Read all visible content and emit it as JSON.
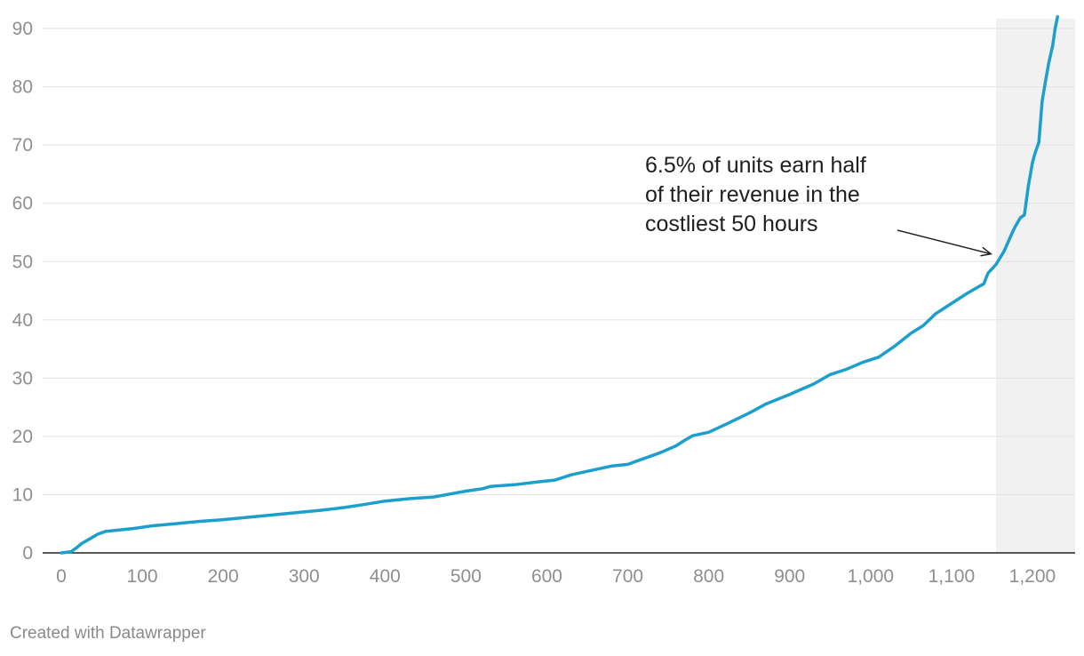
{
  "chart_data": {
    "type": "line",
    "title": "",
    "xlabel": "",
    "ylabel": "",
    "xlim": [
      0,
      1235
    ],
    "ylim": [
      0,
      92
    ],
    "x_ticks": [
      0,
      100,
      200,
      300,
      400,
      500,
      600,
      700,
      800,
      900,
      1000,
      1100,
      1200
    ],
    "x_tick_labels": [
      "0",
      "100",
      "200",
      "300",
      "400",
      "500",
      "600",
      "700",
      "800",
      "900",
      "1,000",
      "1,100",
      "1,200"
    ],
    "y_ticks": [
      0,
      10,
      20,
      30,
      40,
      50,
      60,
      70,
      80,
      90
    ],
    "y_tick_labels": [
      "0",
      "10",
      "20",
      "30",
      "40",
      "50",
      "60",
      "70",
      "80",
      "90"
    ],
    "grid": true,
    "highlight_range": [
      1155,
      1235
    ],
    "series": [
      {
        "color": "#1d9fcd",
        "points": [
          [
            0,
            0
          ],
          [
            12,
            0.2
          ],
          [
            20,
            1.0
          ],
          [
            25,
            1.6
          ],
          [
            35,
            2.4
          ],
          [
            45,
            3.2
          ],
          [
            55,
            3.7
          ],
          [
            70,
            3.9
          ],
          [
            90,
            4.2
          ],
          [
            110,
            4.6
          ],
          [
            140,
            5.0
          ],
          [
            170,
            5.4
          ],
          [
            200,
            5.7
          ],
          [
            230,
            6.1
          ],
          [
            260,
            6.5
          ],
          [
            290,
            6.9
          ],
          [
            320,
            7.3
          ],
          [
            350,
            7.8
          ],
          [
            370,
            8.2
          ],
          [
            400,
            8.9
          ],
          [
            430,
            9.3
          ],
          [
            460,
            9.6
          ],
          [
            480,
            10.1
          ],
          [
            500,
            10.6
          ],
          [
            520,
            11.0
          ],
          [
            530,
            11.4
          ],
          [
            560,
            11.7
          ],
          [
            590,
            12.2
          ],
          [
            610,
            12.5
          ],
          [
            630,
            13.4
          ],
          [
            650,
            14.0
          ],
          [
            680,
            14.9
          ],
          [
            700,
            15.2
          ],
          [
            720,
            16.2
          ],
          [
            740,
            17.2
          ],
          [
            760,
            18.4
          ],
          [
            770,
            19.3
          ],
          [
            780,
            20.1
          ],
          [
            800,
            20.7
          ],
          [
            820,
            22.0
          ],
          [
            850,
            24.0
          ],
          [
            870,
            25.5
          ],
          [
            900,
            27.2
          ],
          [
            930,
            29.0
          ],
          [
            950,
            30.6
          ],
          [
            970,
            31.5
          ],
          [
            990,
            32.7
          ],
          [
            1010,
            33.6
          ],
          [
            1030,
            35.5
          ],
          [
            1050,
            37.7
          ],
          [
            1065,
            39.0
          ],
          [
            1080,
            41.0
          ],
          [
            1100,
            42.8
          ],
          [
            1120,
            44.6
          ],
          [
            1140,
            46.2
          ],
          [
            1145,
            48.0
          ],
          [
            1155,
            49.5
          ],
          [
            1165,
            51.8
          ],
          [
            1172,
            54.0
          ],
          [
            1178,
            55.8
          ],
          [
            1185,
            57.5
          ],
          [
            1190,
            58.0
          ],
          [
            1195,
            63.0
          ],
          [
            1200,
            67.0
          ],
          [
            1203,
            68.5
          ],
          [
            1208,
            70.5
          ],
          [
            1212,
            77.5
          ],
          [
            1215,
            80.0
          ],
          [
            1220,
            84.0
          ],
          [
            1225,
            87.0
          ],
          [
            1228,
            90.0
          ],
          [
            1231,
            92.0
          ]
        ]
      }
    ]
  },
  "annotation": {
    "lines": [
      "6.5% of units earn half",
      "of their revenue in the",
      "costliest 50 hours"
    ],
    "target": [
      1152,
      51
    ]
  },
  "credit": "Created with Datawrapper"
}
